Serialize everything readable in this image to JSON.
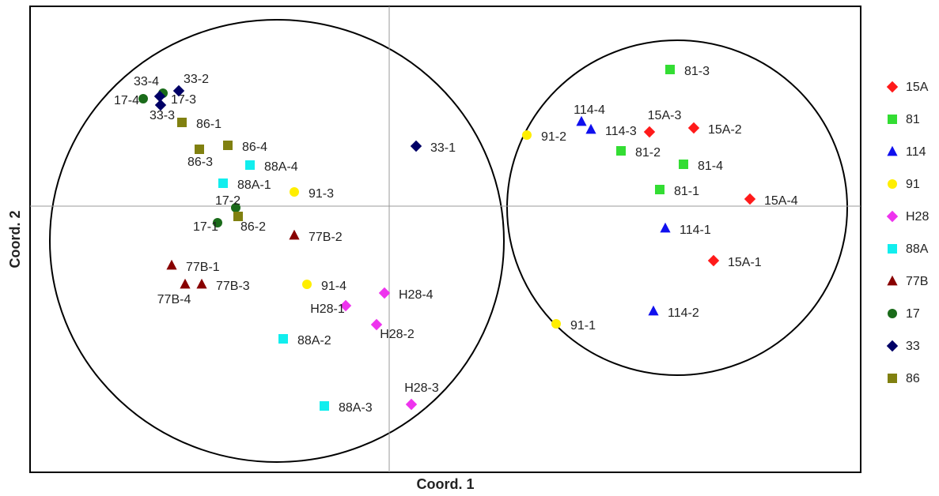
{
  "chart_data": {
    "type": "scatter",
    "xlabel": "Coord. 1",
    "ylabel": "Coord. 2",
    "xlim": [
      -4.54,
      5.96
    ],
    "ylim": [
      -3.37,
      2.53
    ],
    "zero_lines": true,
    "series": [
      {
        "name": "15A",
        "color": "#ff1a1a",
        "marker": "diamond",
        "labels": [
          "15A-1",
          "15A-2",
          "15A-3",
          "15A-4"
        ],
        "x": [
          4.1,
          3.85,
          3.29,
          4.56
        ],
        "values": [
          -0.69,
          0.99,
          0.94,
          0.09
        ]
      },
      {
        "name": "81",
        "color": "#33dd33",
        "marker": "square",
        "labels": [
          "81-3",
          "81-2",
          "81-4",
          "81-1"
        ],
        "x": [
          3.55,
          2.93,
          3.72,
          3.42
        ],
        "values": [
          1.73,
          0.7,
          0.53,
          0.21
        ]
      },
      {
        "name": "114",
        "color": "#1010ee",
        "marker": "triangle",
        "labels": [
          "114-4",
          "114-3",
          "114-1",
          "114-2"
        ],
        "x": [
          2.43,
          2.55,
          3.49,
          3.34
        ],
        "values": [
          1.07,
          0.97,
          -0.28,
          -1.33
        ]
      },
      {
        "name": "91",
        "color": "#ffee00",
        "marker": "circle",
        "labels": [
          "91-2",
          "91-3",
          "91-4",
          "91-1"
        ],
        "x": [
          1.74,
          -1.2,
          -1.04,
          2.11
        ],
        "values": [
          0.9,
          0.18,
          -0.99,
          -1.49
        ]
      },
      {
        "name": "H28",
        "color": "#ee33ee",
        "marker": "diamond",
        "labels": [
          "H28-1",
          "H28-4",
          "H28-2",
          "H28-3"
        ],
        "x": [
          -0.55,
          -0.06,
          -0.16,
          0.28
        ],
        "values": [
          -1.26,
          -1.1,
          -1.5,
          -2.51
        ]
      },
      {
        "name": "88A",
        "color": "#11eeee",
        "marker": "square",
        "labels": [
          "88A-4",
          "88A-1",
          "88A-2",
          "88A-3"
        ],
        "x": [
          -1.76,
          -2.1,
          -1.34,
          -0.82
        ],
        "values": [
          0.52,
          0.29,
          -1.68,
          -2.53
        ]
      },
      {
        "name": "77B",
        "color": "#880000",
        "marker": "triangle",
        "labels": [
          "77B-2",
          "77B-1",
          "77B-4",
          "77B-3"
        ],
        "x": [
          -1.2,
          -2.75,
          -2.58,
          -2.37
        ],
        "values": [
          -0.37,
          -0.75,
          -0.99,
          -0.99
        ]
      },
      {
        "name": "17",
        "color": "#1a6b1a",
        "marker": "circle",
        "labels": [
          "17-4",
          "17-3",
          "17-2",
          "17-1"
        ],
        "x": [
          -3.11,
          -2.86,
          -1.94,
          -2.17
        ],
        "values": [
          1.36,
          1.43,
          -0.02,
          -0.21
        ]
      },
      {
        "name": "33",
        "color": "#000066",
        "marker": "diamond",
        "labels": [
          "33-4",
          "33-2",
          "33-3",
          "33-1"
        ],
        "x": [
          -2.9,
          -2.66,
          -2.89,
          0.34
        ],
        "values": [
          1.39,
          1.46,
          1.28,
          0.76
        ]
      },
      {
        "name": "86",
        "color": "#808010",
        "marker": "square",
        "labels": [
          "86-1",
          "86-4",
          "86-3",
          "86-2"
        ],
        "x": [
          -2.62,
          -2.04,
          -2.4,
          -1.91
        ],
        "values": [
          1.06,
          0.77,
          0.72,
          -0.13
        ]
      }
    ]
  }
}
